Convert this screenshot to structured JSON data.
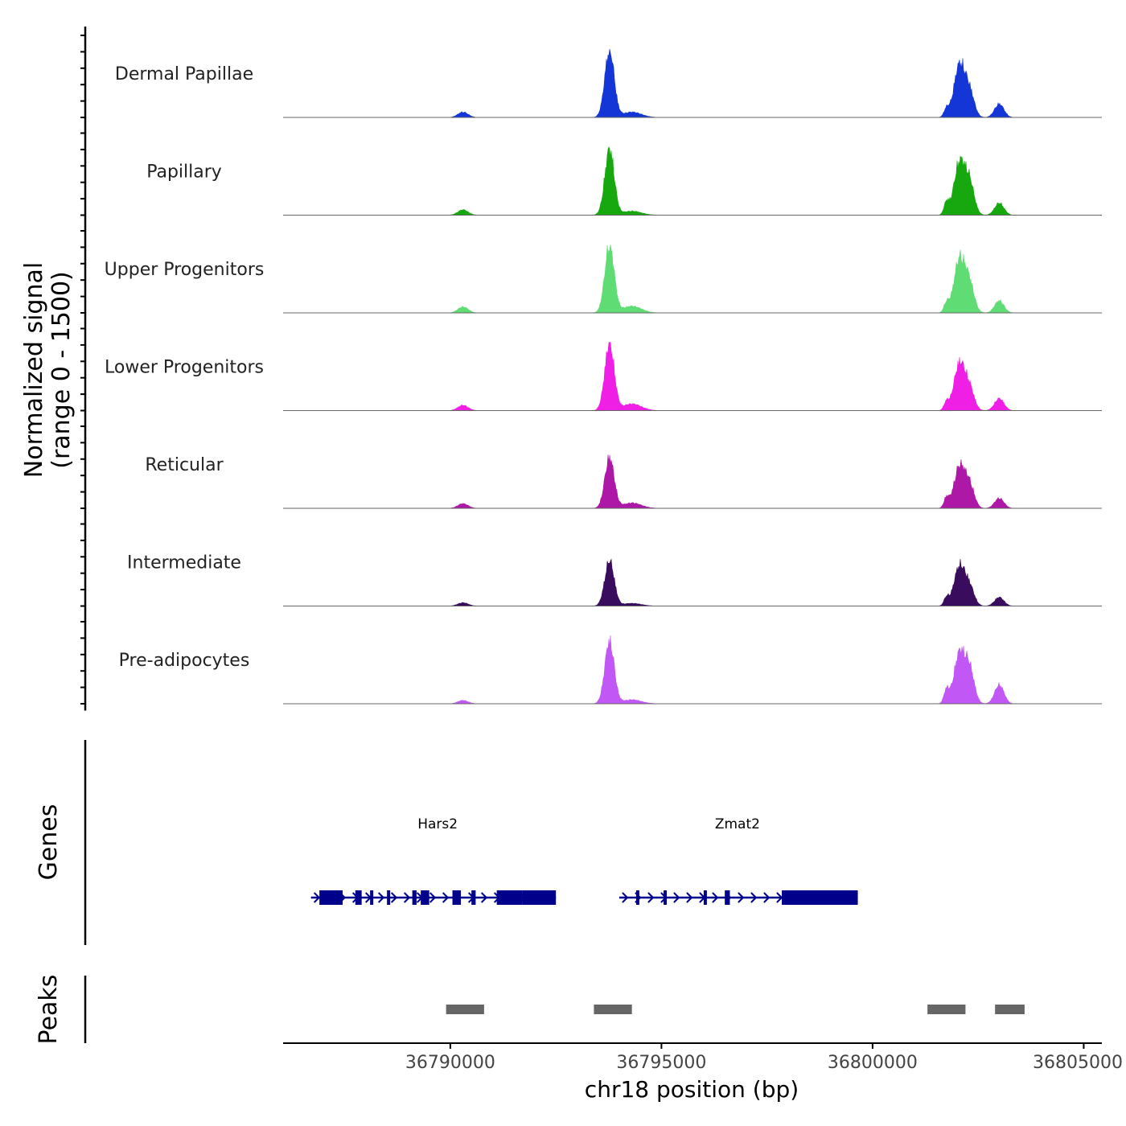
{
  "chart_data": {
    "type": "area",
    "title": "",
    "ylabel_line1": "Normalized signal",
    "ylabel_line2": "(range 0 - 1500)",
    "y_range": [
      0,
      1500
    ],
    "xlabel": "chr18 position (bp)",
    "xlim": [
      36786000,
      36805000
    ],
    "x_ticks": [
      36790000,
      36795000,
      36800000,
      36805000
    ],
    "track_labels": {
      "genes": "Genes",
      "peaks": "Peaks"
    },
    "tracks": [
      {
        "name": "Dermal Papillae",
        "color": "#1536d6"
      },
      {
        "name": "Papillary",
        "color": "#17a80f"
      },
      {
        "name": "Upper Progenitors",
        "color": "#5fdc74"
      },
      {
        "name": "Lower Progenitors",
        "color": "#f01fe6"
      },
      {
        "name": "Reticular",
        "color": "#ad18a6"
      },
      {
        "name": "Intermediate",
        "color": "#3a0c5e"
      },
      {
        "name": "Pre-adipocytes",
        "color": "#c157f5"
      }
    ],
    "peak_shapes": [
      {
        "center": 36790300,
        "halfwidth": 120
      },
      {
        "center": 36793770,
        "halfwidth": 110
      },
      {
        "center": 36794300,
        "halfwidth": 220
      },
      {
        "center": 36801750,
        "halfwidth": 60
      },
      {
        "center": 36802060,
        "halfwidth": 130
      },
      {
        "center": 36802300,
        "halfwidth": 110
      },
      {
        "center": 36803000,
        "halfwidth": 110
      }
    ],
    "peak_heights": [
      [
        0.08,
        1.0,
        0.08,
        0.12,
        0.78,
        0.35,
        0.2
      ],
      [
        0.08,
        0.98,
        0.06,
        0.18,
        0.78,
        0.45,
        0.18
      ],
      [
        0.09,
        1.0,
        0.1,
        0.14,
        0.8,
        0.4,
        0.18
      ],
      [
        0.08,
        1.0,
        0.1,
        0.12,
        0.7,
        0.3,
        0.18
      ],
      [
        0.07,
        0.75,
        0.08,
        0.15,
        0.62,
        0.32,
        0.15
      ],
      [
        0.05,
        0.67,
        0.04,
        0.12,
        0.59,
        0.26,
        0.13
      ],
      [
        0.05,
        0.93,
        0.06,
        0.2,
        0.75,
        0.48,
        0.28
      ]
    ],
    "genes": [
      {
        "name": "Hars2",
        "strand": "+",
        "start": 36786700,
        "end": 36792500,
        "label_x": 36789700,
        "exons": [
          [
            36786900,
            36787450
          ],
          [
            36787750,
            36787900
          ],
          [
            36788100,
            36788150
          ],
          [
            36788500,
            36788560
          ],
          [
            36789100,
            36789200
          ],
          [
            36789300,
            36789500
          ],
          [
            36790050,
            36790250
          ],
          [
            36790500,
            36790600
          ],
          [
            36791100,
            36791700
          ]
        ],
        "utrs": [
          [
            36791700,
            36792500
          ]
        ]
      },
      {
        "name": "Zmat2",
        "strand": "+",
        "start": 36794000,
        "end": 36799650,
        "label_x": 36796800,
        "exons": [
          [
            36794400,
            36794450
          ],
          [
            36795050,
            36795120
          ],
          [
            36796000,
            36796050
          ],
          [
            36796500,
            36796620
          ]
        ],
        "utrs": [
          [
            36797850,
            36799650
          ]
        ]
      }
    ],
    "peaks": [
      [
        36789900,
        36790800
      ],
      [
        36793400,
        36794300
      ],
      [
        36801300,
        36802200
      ],
      [
        36802900,
        36803600
      ]
    ]
  }
}
